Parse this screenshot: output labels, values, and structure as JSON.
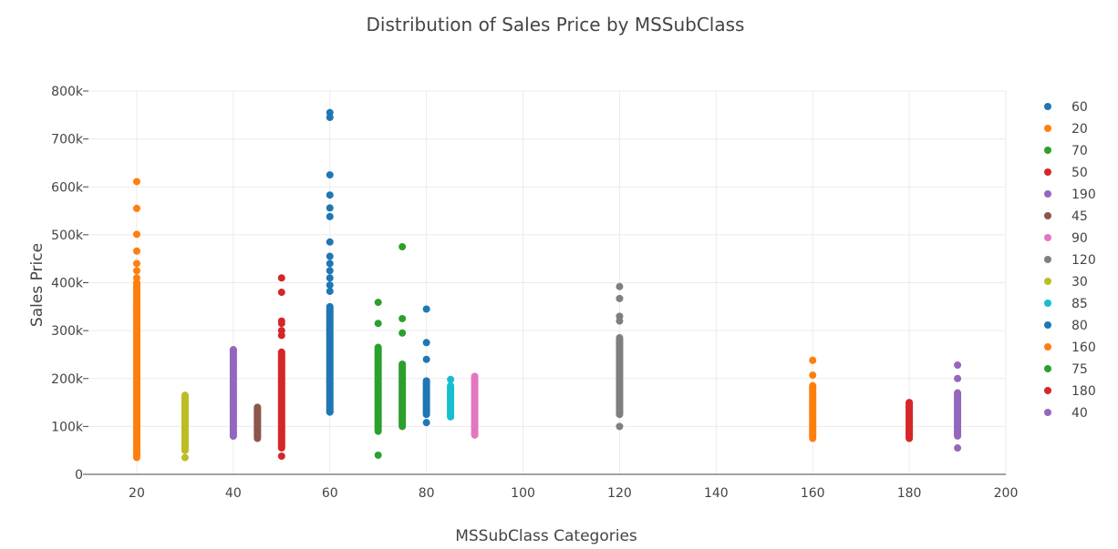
{
  "chart_data": {
    "type": "scatter",
    "title": "Distribution of Sales Price by MSSubClass",
    "xlabel": "MSSubClass Categories",
    "ylabel": "Sales Price",
    "xlim": [
      10,
      200
    ],
    "ylim": [
      0,
      800000
    ],
    "x_ticks": [
      "20",
      "40",
      "60",
      "80",
      "100",
      "120",
      "140",
      "160",
      "180",
      "200"
    ],
    "y_ticks": [
      "0",
      "100k",
      "200k",
      "300k",
      "400k",
      "500k",
      "600k",
      "700k",
      "800k"
    ],
    "grid": true,
    "legend_position": "right",
    "series": [
      {
        "name": "60",
        "x": 60,
        "color": "#1f77b4",
        "min": 130000,
        "max": 350000,
        "values": [
          755000,
          745000,
          625000,
          583000,
          556000,
          538000,
          485000,
          455000,
          440000,
          425000,
          410000,
          395000,
          382000,
          130000
        ]
      },
      {
        "name": "20",
        "x": 20,
        "color": "#ff7f0e",
        "min": 40000,
        "max": 400000,
        "values": [
          611000,
          555000,
          501000,
          466000,
          440000,
          425000,
          410000,
          35000
        ]
      },
      {
        "name": "70",
        "x": 70,
        "color": "#2ca02c",
        "min": 90000,
        "max": 265000,
        "values": [
          359000,
          315000,
          40000
        ]
      },
      {
        "name": "50",
        "x": 50,
        "color": "#d62728",
        "min": 55000,
        "max": 255000,
        "values": [
          410000,
          380000,
          320000,
          315000,
          300000,
          290000,
          38000
        ]
      },
      {
        "name": "190",
        "x": 190,
        "color": "#9467bd",
        "min": 80000,
        "max": 170000,
        "values": [
          228000,
          200000,
          55000
        ]
      },
      {
        "name": "45",
        "x": 45,
        "color": "#8c564b",
        "min": 75000,
        "max": 140000,
        "values": []
      },
      {
        "name": "90",
        "x": 90,
        "color": "#e377c2",
        "min": 82000,
        "max": 205000,
        "values": []
      },
      {
        "name": "120",
        "x": 120,
        "color": "#7f7f7f",
        "min": 125000,
        "max": 285000,
        "values": [
          392000,
          367000,
          330000,
          320000,
          100000
        ]
      },
      {
        "name": "30",
        "x": 30,
        "color": "#bcbd22",
        "min": 50000,
        "max": 165000,
        "values": [
          35000
        ]
      },
      {
        "name": "85",
        "x": 85,
        "color": "#17becf",
        "min": 120000,
        "max": 185000,
        "values": [
          198000
        ]
      },
      {
        "name": "80",
        "x": 80,
        "color": "#1f77b4",
        "min": 125000,
        "max": 195000,
        "values": [
          345000,
          275000,
          240000,
          108000
        ]
      },
      {
        "name": "160",
        "x": 160,
        "color": "#ff7f0e",
        "min": 75000,
        "max": 185000,
        "values": [
          238000,
          207000
        ]
      },
      {
        "name": "75",
        "x": 75,
        "color": "#2ca02c",
        "min": 100000,
        "max": 230000,
        "values": [
          475000,
          325000,
          295000
        ]
      },
      {
        "name": "180",
        "x": 180,
        "color": "#d62728",
        "min": 75000,
        "max": 150000,
        "values": [
          148000,
          140000,
          92000,
          85000,
          78000
        ]
      },
      {
        "name": "40",
        "x": 40,
        "color": "#9467bd",
        "min": 80000,
        "max": 260000,
        "values": [
          260000,
          152000,
          132000,
          80000
        ]
      }
    ]
  }
}
